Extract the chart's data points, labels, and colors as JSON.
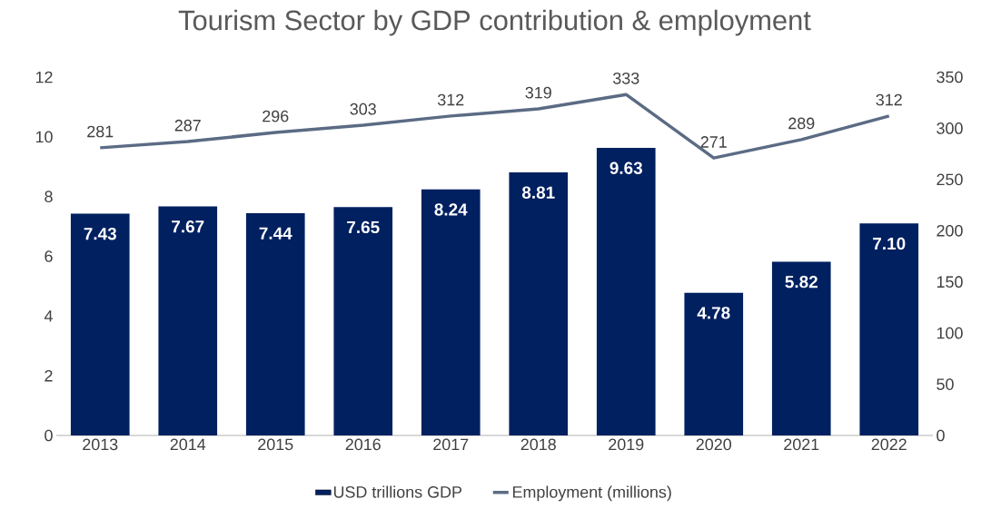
{
  "chart_data": {
    "type": "bar",
    "title": "Tourism Sector by GDP contribution & employment",
    "categories": [
      "2013",
      "2014",
      "2015",
      "2016",
      "2017",
      "2018",
      "2019",
      "2020",
      "2021",
      "2022"
    ],
    "series": [
      {
        "name": "USD trillions GDP",
        "color": "#002060",
        "values": [
          7.43,
          7.67,
          7.44,
          7.65,
          8.24,
          8.81,
          9.63,
          4.78,
          5.82,
          7.1
        ],
        "value_labels": [
          "7.43",
          "7.67",
          "7.44",
          "7.65",
          "8.24",
          "8.81",
          "9.63",
          "4.78",
          "5.82",
          "7.10"
        ]
      },
      {
        "name": "Employment (millions)",
        "type": "line",
        "axis": "y2",
        "color": "#5b6b84",
        "values": [
          281,
          287,
          296,
          303,
          312,
          319,
          333,
          271,
          289,
          312
        ],
        "value_labels": [
          "281",
          "287",
          "296",
          "303",
          "312",
          "319",
          "333",
          "271",
          "289",
          "312"
        ]
      }
    ],
    "ylim": [
      0,
      12
    ],
    "yticks": [
      0,
      2,
      4,
      6,
      8,
      10,
      12
    ],
    "y2lim": [
      0,
      350
    ],
    "y2ticks": [
      0,
      50,
      100,
      150,
      200,
      250,
      300,
      350
    ],
    "legend": "bottom"
  }
}
